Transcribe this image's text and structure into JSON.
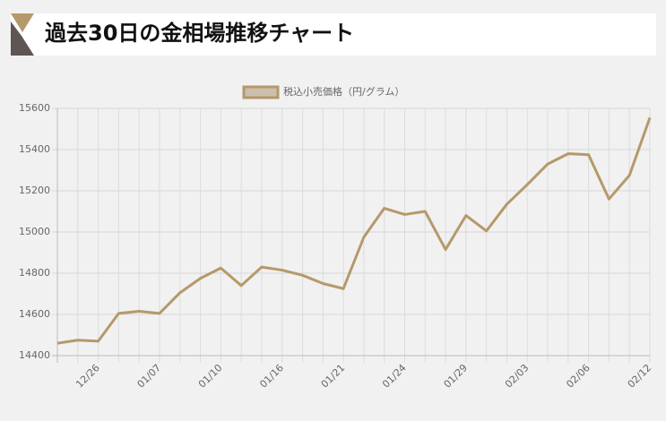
{
  "chart_data": {
    "type": "line",
    "title": "過去30日の金相場推移チャート",
    "categories": [
      null,
      null,
      "12/26",
      null,
      null,
      "01/07",
      null,
      null,
      "01/10",
      null,
      null,
      "01/16",
      null,
      null,
      "01/21",
      null,
      null,
      "01/24",
      null,
      null,
      "01/29",
      null,
      null,
      "02/03",
      null,
      null,
      "02/06",
      null,
      null,
      "02/12"
    ],
    "series": [
      {
        "name": "税込小売価格（円/グラム）",
        "color": "#b5996a",
        "values": [
          14460,
          14475,
          14470,
          14605,
          14615,
          14605,
          14705,
          14775,
          14825,
          14740,
          14830,
          14815,
          14790,
          14750,
          14725,
          14975,
          15115,
          15085,
          15100,
          14915,
          15080,
          15005,
          15135,
          15230,
          15330,
          15380,
          15375,
          15160,
          15275,
          15555
        ]
      }
    ],
    "ylim": [
      14400,
      15600
    ],
    "yticks": [
      14400,
      14600,
      14800,
      15000,
      15200,
      15400,
      15600
    ],
    "grid": true,
    "legend": "top"
  }
}
